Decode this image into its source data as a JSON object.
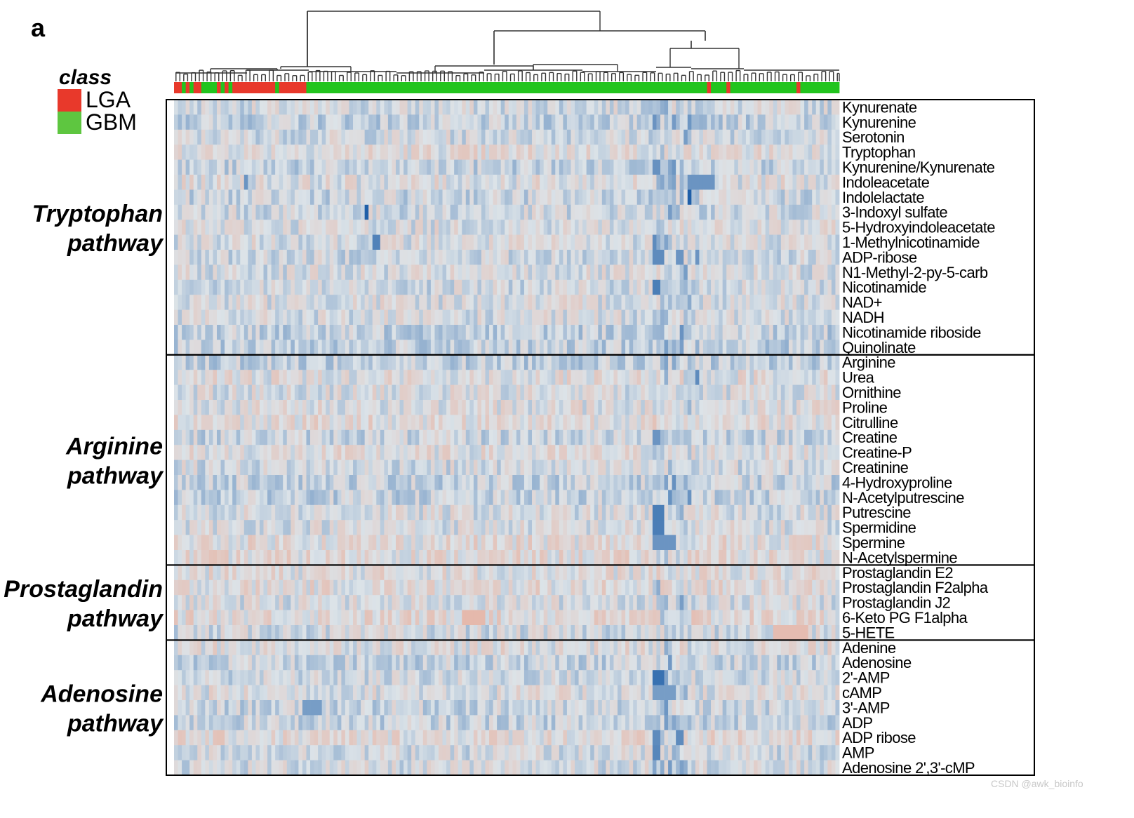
{
  "chart_data": {
    "type": "heatmap",
    "panel_label": "a",
    "legend": {
      "title": "class",
      "entries": [
        {
          "label": "LGA",
          "color": "#e8392b"
        },
        {
          "label": "GBM",
          "color": "#5ec640"
        }
      ]
    },
    "column_classes": "RRGRGRRGGGGRGRGRRRRRRRRRRRGRRRRRRRGGGGGGGGGGGGGGGGGGGGGGGGGGGGGGGGGGGGGGGGGGGGGGGGGGGGGGGGGGGGGGGGGGGGGGGGGGGGGGGGGGGGGGGGGGGGGGGGGGGGGGGRGGGGRGGGGGGGGGGGGGGGGGRGGGGGGGGGG",
    "color_scale": {
      "low": "#1f5fa8",
      "mid": "#dce3e8",
      "high": "#f08a68",
      "min": -3,
      "max": 3
    },
    "groups": [
      {
        "name_line1": "Tryptophan",
        "name_line2": "pathway",
        "rows": [
          "Kynurenate",
          "Kynurenine",
          "Serotonin",
          "Tryptophan",
          "Kynurenine/Kynurenate",
          "Indoleacetate",
          "Indolelactate",
          "3-Indoxyl sulfate",
          "5-Hydroxyindoleacetate",
          "1-Methylnicotinamide",
          "ADP-ribose",
          "N1-Methyl-2-py-5-carb",
          "Nicotinamide",
          "NAD+",
          "NADH",
          "Nicotinamide  riboside",
          "Quinolinate"
        ]
      },
      {
        "name_line1": "Arginine",
        "name_line2": "pathway",
        "rows": [
          "Arginine",
          "Urea",
          "Ornithine",
          "Proline",
          "Citrulline",
          "Creatine",
          "Creatine-P",
          "Creatinine",
          "4-Hydroxyproline",
          "N-Acetylputrescine",
          "Putrescine",
          "Spermidine",
          "Spermine",
          "N-Acetylspermine"
        ]
      },
      {
        "name_line1": "Prostaglandin",
        "name_line2": "pathway",
        "rows": [
          "Prostaglandin  E2",
          "Prostaglandin  F2alpha",
          "Prostaglandin  J2",
          "6-Keto PG F1alpha",
          "5-HETE"
        ]
      },
      {
        "name_line1": "Adenosine",
        "name_line2": "pathway",
        "rows": [
          "Adenine",
          "Adenosine",
          "2'-AMP",
          "cAMP",
          "3'-AMP",
          "ADP",
          "ADP ribose",
          "AMP",
          "Adenosine 2',3'-cMP"
        ]
      }
    ],
    "strong_values": [
      {
        "row": "Indoleacetate",
        "cols": [
          18
        ],
        "value": -1.8
      },
      {
        "row": "Indoleacetate",
        "cols": [
          132,
          133,
          134,
          135,
          136,
          137,
          138
        ],
        "value": -1.8
      },
      {
        "row": "Indolelactate",
        "cols": [
          132
        ],
        "value": -3.0
      },
      {
        "row": "3-Indoxyl sulfate",
        "cols": [
          49
        ],
        "value": -3.0
      },
      {
        "row": "1-Methylnicotinamide",
        "cols": [
          51,
          52
        ],
        "value": -2.2
      },
      {
        "row": "1-Methylnicotinamide",
        "cols": [
          123
        ],
        "value": -2.0
      },
      {
        "row": "ADP-ribose",
        "cols": [
          123,
          124,
          125
        ],
        "value": -2.0
      },
      {
        "row": "ADP-ribose",
        "cols": [
          129,
          130
        ],
        "value": -1.8
      },
      {
        "row": "ADP-ribose",
        "cols": [
          134
        ],
        "value": -1.8
      },
      {
        "row": "Nicotinamide",
        "cols": [
          123,
          124
        ],
        "value": -2.3
      },
      {
        "row": "Urea",
        "cols": [
          134
        ],
        "value": -2.0
      },
      {
        "row": "Creatine",
        "cols": [
          123,
          124
        ],
        "value": -1.8
      },
      {
        "row": "Putrescine",
        "cols": [
          123,
          124,
          125
        ],
        "value": -2.3
      },
      {
        "row": "Spermidine",
        "cols": [
          123,
          124,
          125
        ],
        "value": -2.3
      },
      {
        "row": "Spermine",
        "cols": [
          123,
          124,
          125,
          126,
          127,
          128
        ],
        "value": -1.8
      },
      {
        "row": "2'-AMP",
        "cols": [
          123,
          124,
          125
        ],
        "value": -2.6
      },
      {
        "row": "cAMP",
        "cols": [
          123,
          124,
          125,
          126,
          127,
          128
        ],
        "value": -1.6
      },
      {
        "row": "3'-AMP",
        "cols": [
          33,
          34,
          35,
          36,
          37
        ],
        "value": -1.6
      },
      {
        "row": "ADP ribose",
        "cols": [
          123,
          124
        ],
        "value": -2.0
      },
      {
        "row": "ADP ribose",
        "cols": [
          129,
          130
        ],
        "value": -2.0
      },
      {
        "row": "AMP",
        "cols": [
          123,
          124
        ],
        "value": -2.1
      },
      {
        "row": "6-Keto PG F1alpha",
        "cols": [
          74,
          75,
          76,
          77,
          78,
          79
        ],
        "value": 1.4
      },
      {
        "row": "5-HETE",
        "cols": [
          154,
          155,
          156,
          157,
          158,
          159,
          160,
          161,
          162
        ],
        "value": 1.3
      }
    ]
  },
  "watermark": "CSDN @awk_bioinfo"
}
